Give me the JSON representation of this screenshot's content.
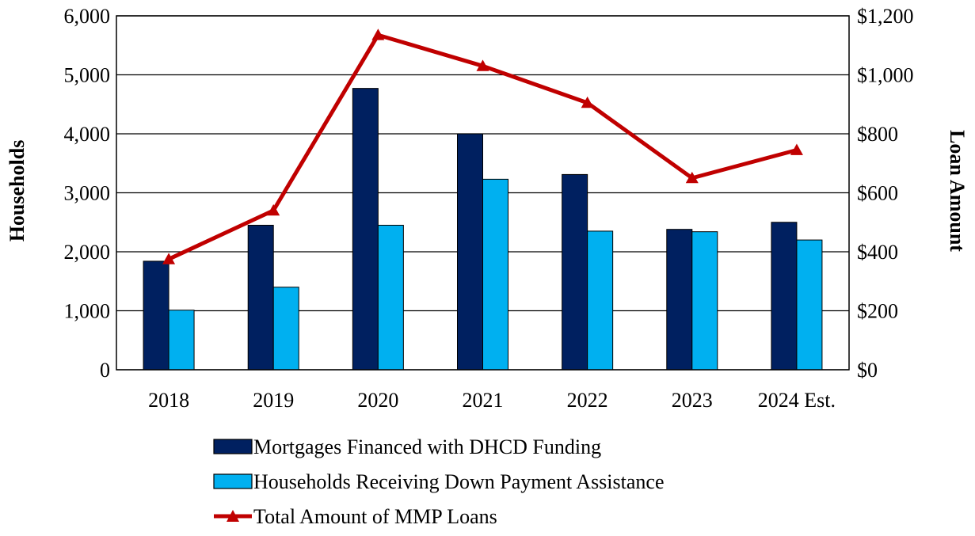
{
  "chart_data": {
    "type": "bar",
    "title": "",
    "categories": [
      "2018",
      "2019",
      "2020",
      "2021",
      "2022",
      "2023",
      "2024 Est."
    ],
    "ylabel": "Households",
    "y2label": "Loan Amount",
    "ylim": [
      0,
      6000
    ],
    "y2lim": [
      0,
      1200
    ],
    "yticks": [
      "0",
      "1,000",
      "2,000",
      "3,000",
      "4,000",
      "5,000",
      "6,000"
    ],
    "y2ticks": [
      "$0",
      "$200",
      "$400",
      "$600",
      "$800",
      "$1,000",
      "$1,200"
    ],
    "grid": true,
    "legend_position": "bottom",
    "series": [
      {
        "name": "Mortgages Financed with DHCD Funding",
        "kind": "bar",
        "axis": "left",
        "color": "#002060",
        "values": [
          1840,
          2450,
          4770,
          4000,
          3310,
          2380,
          2500
        ]
      },
      {
        "name": "Households Receiving Down Payment Assistance",
        "kind": "bar",
        "axis": "left",
        "color": "#00B0F0",
        "values": [
          1010,
          1400,
          2450,
          3230,
          2350,
          2340,
          2200
        ]
      },
      {
        "name": "Total Amount of MMP Loans",
        "kind": "line",
        "axis": "right",
        "color": "#C00000",
        "marker": "triangle",
        "values": [
          375,
          540,
          1135,
          1030,
          905,
          650,
          745
        ]
      }
    ]
  }
}
